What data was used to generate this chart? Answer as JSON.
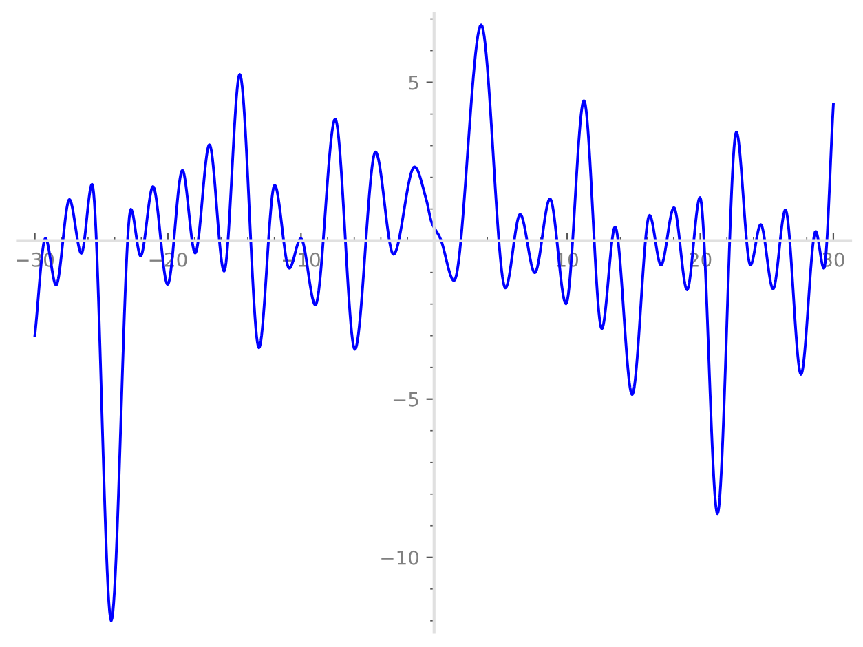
{
  "chart_data": {
    "type": "line",
    "x": [
      -30,
      -29.2,
      -28.4,
      -27.4,
      -26.5,
      -25.7,
      -24.26,
      -22.78,
      -22.05,
      -21.12,
      -20.02,
      -18.91,
      -17.95,
      -16.88,
      -15.78,
      -14.6,
      -13.16,
      -11.98,
      -10.88,
      -10.01,
      -8.92,
      -7.43,
      -5.95,
      -4.4,
      -3.05,
      -1.47,
      -0.57,
      -0.2,
      0.47,
      1.5,
      3.54,
      5.36,
      6.47,
      7.57,
      8.71,
      9.91,
      11.26,
      12.6,
      13.6,
      14.88,
      16.19,
      17.05,
      18.02,
      19.01,
      19.98,
      21.29,
      22.71,
      23.77,
      24.54,
      25.47,
      26.4,
      27.57,
      28.67,
      29.29,
      30
    ],
    "series": [
      {
        "color": "#0000ff",
        "values": [
          -3.0,
          0.07,
          -1.4,
          1.3,
          -0.4,
          1.78,
          -12.0,
          0.99,
          -0.48,
          1.71,
          -1.38,
          2.22,
          -0.39,
          3.03,
          -0.96,
          5.25,
          -3.38,
          1.75,
          -0.87,
          0.07,
          -2.03,
          3.84,
          -3.43,
          2.8,
          -0.43,
          2.33,
          1.27,
          0.6,
          0.07,
          -1.26,
          6.81,
          -1.49,
          0.83,
          -1.01,
          1.32,
          -1.99,
          4.42,
          -2.78,
          0.43,
          -4.86,
          0.8,
          -0.77,
          1.04,
          -1.55,
          1.36,
          -8.62,
          3.43,
          -0.77,
          0.51,
          -1.52,
          0.97,
          -4.22,
          0.29,
          -0.87,
          4.3
        ]
      }
    ],
    "xlim": [
      -31.3,
      31.3
    ],
    "ylim": [
      -12.36,
      7.17
    ],
    "xticks": [
      {
        "value": -30,
        "label": "−30"
      },
      {
        "value": -28,
        "label": null
      },
      {
        "value": -26,
        "label": null
      },
      {
        "value": -24,
        "label": null
      },
      {
        "value": -22,
        "label": null
      },
      {
        "value": -20,
        "label": "−20"
      },
      {
        "value": -18,
        "label": null
      },
      {
        "value": -16,
        "label": null
      },
      {
        "value": -14,
        "label": null
      },
      {
        "value": -12,
        "label": null
      },
      {
        "value": -10,
        "label": "−10"
      },
      {
        "value": -8,
        "label": null
      },
      {
        "value": -6,
        "label": null
      },
      {
        "value": -4,
        "label": null
      },
      {
        "value": -2,
        "label": null
      },
      {
        "value": 2,
        "label": null
      },
      {
        "value": 4,
        "label": null
      },
      {
        "value": 6,
        "label": null
      },
      {
        "value": 8,
        "label": null
      },
      10,
      {
        "value": 12,
        "label": null
      },
      {
        "value": 14,
        "label": null
      },
      {
        "value": 16,
        "label": null
      },
      {
        "value": 18,
        "label": null
      },
      20,
      {
        "value": 22,
        "label": null
      },
      {
        "value": 24,
        "label": null
      },
      {
        "value": 26,
        "label": null
      },
      {
        "value": 28,
        "label": null
      },
      30
    ],
    "yticks": [
      {
        "value": -12,
        "label": null
      },
      {
        "value": -11,
        "label": null
      },
      {
        "value": -10,
        "label": "−10"
      },
      {
        "value": -9,
        "label": null
      },
      {
        "value": -8,
        "label": null
      },
      {
        "value": -7,
        "label": null
      },
      {
        "value": -6,
        "label": null
      },
      {
        "value": -5,
        "label": "−5"
      },
      {
        "value": -4,
        "label": null
      },
      {
        "value": -3,
        "label": null
      },
      {
        "value": -2,
        "label": null
      },
      {
        "value": -1,
        "label": null
      },
      {
        "value": 1,
        "label": null
      },
      {
        "value": 2,
        "label": null
      },
      {
        "value": 3,
        "label": null
      },
      {
        "value": 4,
        "label": null
      },
      5,
      {
        "value": 6,
        "label": null
      },
      {
        "value": 7,
        "label": null
      }
    ],
    "line_style": "solid"
  }
}
